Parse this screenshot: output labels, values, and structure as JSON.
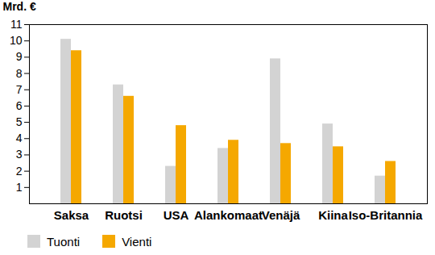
{
  "chart_data": {
    "type": "bar",
    "categories": [
      "Saksa",
      "Ruotsi",
      "USA",
      "Alankomaat",
      "Venäjä",
      "Kiina",
      "Iso-Britannia"
    ],
    "series": [
      {
        "name": "Tuonti",
        "color": "#d3d3d3",
        "values": [
          10.1,
          7.3,
          2.3,
          3.4,
          8.9,
          4.9,
          1.7
        ]
      },
      {
        "name": "Vienti",
        "color": "#f5a800",
        "values": [
          9.4,
          6.6,
          4.8,
          3.9,
          3.7,
          3.5,
          2.6
        ]
      }
    ],
    "ylabel": "Mrd. €",
    "ylim": [
      0,
      11
    ],
    "yticks": [
      1,
      2,
      3,
      4,
      5,
      6,
      7,
      8,
      9,
      10,
      11
    ],
    "grid": false,
    "legend": "bottom"
  }
}
